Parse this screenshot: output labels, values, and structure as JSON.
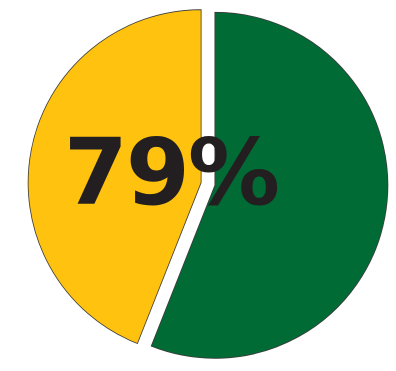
{
  "chart_data": {
    "type": "pie",
    "slices": [
      {
        "value": 56,
        "color": "#006B35"
      },
      {
        "value": 44,
        "color": "#FFC20E"
      }
    ],
    "center_label": "79%"
  }
}
